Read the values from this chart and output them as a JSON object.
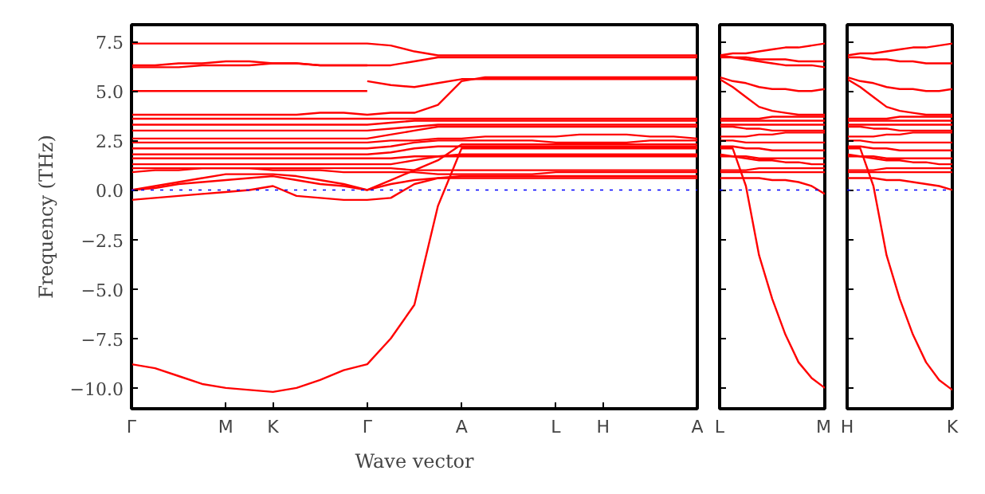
{
  "chart_data": [
    {
      "type": "line",
      "xlabel": "Wave vector",
      "ylabel": "Frequency (THz)",
      "ylim": [
        -11.05,
        8.35
      ],
      "categories": [
        "Γ",
        null,
        null,
        null,
        "M",
        null,
        "K",
        null,
        null,
        null,
        "Γ",
        null,
        null,
        null,
        "A",
        null,
        null,
        null,
        "L",
        null,
        "H",
        null,
        null,
        null,
        "A"
      ],
      "yticks": [
        {
          "value": -10,
          "label": "−10.0"
        },
        {
          "value": -7.5,
          "label": "−7.5"
        },
        {
          "value": -5,
          "label": "−5.0"
        },
        {
          "value": -2.5,
          "label": "−2.5"
        },
        {
          "value": 0,
          "label": "0.0"
        },
        {
          "value": 2.5,
          "label": "2.5"
        },
        {
          "value": 5,
          "label": "5.0"
        },
        {
          "value": 7.5,
          "label": "7.5"
        }
      ],
      "grid": false,
      "marker": "none",
      "line_style": "solid",
      "ref_lines": [
        {
          "axis": "y",
          "value": 0,
          "color": "#0000ff",
          "line_style": "dotted"
        }
      ],
      "series": [
        {
          "color": "#ff0000",
          "values": [
            7.4,
            7.4,
            7.4,
            7.4,
            7.4,
            7.4,
            7.4,
            7.4,
            7.4,
            7.4,
            7.4,
            7.3,
            7.0,
            6.8,
            6.8,
            6.8,
            6.8,
            6.8,
            6.8,
            6.8,
            6.8,
            6.8,
            6.8,
            6.8,
            6.8
          ]
        },
        {
          "color": "#ff0000",
          "values": [
            6.3,
            6.3,
            6.4,
            6.4,
            6.5,
            6.5,
            6.4,
            6.4,
            6.3,
            6.3,
            6.3,
            6.3,
            6.5,
            6.7,
            6.7,
            6.7,
            6.7,
            6.7,
            6.7,
            6.7,
            6.7,
            6.7,
            6.7,
            6.7,
            6.7
          ]
        },
        {
          "color": "#ff0000",
          "values": [
            6.2,
            6.2,
            6.2,
            6.3,
            6.3,
            6.3,
            6.4,
            6.4,
            6.3,
            6.3,
            6.3,
            null,
            null,
            null,
            null,
            null,
            null,
            null,
            null,
            null,
            null,
            null,
            null,
            null,
            null
          ]
        },
        {
          "color": "#ff0000",
          "values": [
            5.0,
            5.0,
            5.0,
            5.0,
            5.0,
            5.0,
            5.0,
            5.0,
            5.0,
            5.0,
            5.0,
            null,
            null,
            null,
            null,
            null,
            null,
            null,
            null,
            null,
            null,
            null,
            null,
            null,
            null
          ]
        },
        {
          "color": "#ff0000",
          "values": [
            null,
            null,
            null,
            null,
            null,
            null,
            null,
            null,
            null,
            null,
            5.5,
            5.3,
            5.2,
            5.4,
            5.6,
            5.6,
            5.6,
            5.6,
            5.6,
            5.6,
            5.6,
            5.6,
            5.6,
            5.6,
            5.6
          ]
        },
        {
          "color": "#ff0000",
          "values": [
            3.8,
            3.8,
            3.8,
            3.8,
            3.8,
            3.8,
            3.8,
            3.8,
            3.9,
            3.9,
            3.8,
            3.9,
            3.9,
            4.3,
            5.5,
            5.7,
            5.7,
            5.7,
            5.7,
            5.7,
            5.7,
            5.7,
            5.7,
            5.7,
            5.7
          ]
        },
        {
          "color": "#ff0000",
          "values": [
            3.6,
            3.6,
            3.6,
            3.6,
            3.6,
            3.6,
            3.6,
            3.6,
            3.6,
            3.6,
            3.6,
            3.6,
            3.6,
            3.6,
            3.6,
            3.6,
            3.6,
            3.6,
            3.6,
            3.6,
            3.6,
            3.6,
            3.6,
            3.6,
            3.6
          ]
        },
        {
          "color": "#ff0000",
          "values": [
            3.3,
            3.3,
            3.3,
            3.3,
            3.3,
            3.3,
            3.3,
            3.3,
            3.3,
            3.3,
            3.3,
            3.4,
            3.5,
            3.5,
            3.5,
            3.5,
            3.5,
            3.5,
            3.5,
            3.5,
            3.5,
            3.5,
            3.5,
            3.5,
            3.5
          ]
        },
        {
          "color": "#ff0000",
          "values": [
            3.0,
            3.0,
            3.0,
            3.0,
            3.0,
            3.0,
            3.0,
            3.0,
            3.0,
            3.0,
            3.0,
            3.1,
            3.2,
            3.3,
            3.3,
            3.3,
            3.3,
            3.3,
            3.3,
            3.3,
            3.3,
            3.3,
            3.3,
            3.3,
            3.3
          ]
        },
        {
          "color": "#ff0000",
          "values": [
            2.6,
            2.6,
            2.6,
            2.6,
            2.6,
            2.6,
            2.6,
            2.6,
            2.6,
            2.6,
            2.6,
            2.8,
            3.0,
            3.2,
            3.2,
            3.2,
            3.2,
            3.2,
            3.2,
            3.2,
            3.2,
            3.2,
            3.2,
            3.2,
            3.2
          ]
        },
        {
          "color": "#ff0000",
          "values": [
            2.4,
            2.4,
            2.4,
            2.4,
            2.4,
            2.4,
            2.4,
            2.4,
            2.4,
            2.4,
            2.4,
            2.5,
            2.5,
            2.6,
            2.6,
            2.7,
            2.7,
            2.7,
            2.7,
            2.8,
            2.8,
            2.8,
            2.7,
            2.7,
            2.6
          ]
        },
        {
          "color": "#ff0000",
          "values": [
            2.1,
            2.1,
            2.1,
            2.1,
            2.1,
            2.1,
            2.1,
            2.1,
            2.1,
            2.1,
            2.1,
            2.2,
            2.4,
            2.5,
            2.5,
            2.5,
            2.5,
            2.5,
            2.4,
            2.4,
            2.4,
            2.4,
            2.5,
            2.5,
            2.5
          ]
        },
        {
          "color": "#ff0000",
          "values": [
            1.8,
            1.8,
            1.8,
            1.8,
            1.8,
            1.8,
            1.8,
            1.8,
            1.8,
            1.8,
            1.8,
            1.9,
            2.1,
            2.2,
            2.2,
            2.2,
            2.2,
            2.2,
            2.2,
            2.2,
            2.2,
            2.2,
            2.2,
            2.2,
            2.2
          ]
        },
        {
          "color": "#ff0000",
          "values": [
            1.6,
            1.6,
            1.6,
            1.6,
            1.6,
            1.6,
            1.6,
            1.6,
            1.6,
            1.6,
            1.6,
            1.6,
            1.7,
            1.7,
            1.7,
            1.7,
            1.7,
            1.7,
            1.7,
            1.7,
            1.7,
            1.7,
            1.7,
            1.7,
            1.7
          ]
        },
        {
          "color": "#ff0000",
          "values": [
            1.3,
            1.3,
            1.3,
            1.3,
            1.3,
            1.3,
            1.3,
            1.3,
            1.3,
            1.3,
            1.3,
            1.3,
            1.5,
            1.7,
            1.8,
            1.8,
            1.8,
            1.8,
            1.8,
            1.8,
            1.8,
            1.8,
            1.8,
            1.8,
            1.8
          ]
        },
        {
          "color": "#ff0000",
          "values": [
            1.1,
            1.1,
            1.1,
            1.1,
            1.1,
            1.1,
            1.1,
            1.1,
            1.1,
            1.1,
            1.1,
            1.1,
            1.0,
            1.0,
            1.0,
            1.0,
            1.0,
            1.0,
            1.0,
            1.0,
            1.0,
            1.0,
            1.0,
            1.0,
            1.0
          ]
        },
        {
          "color": "#ff0000",
          "values": [
            0.9,
            1.0,
            1.0,
            1.1,
            1.1,
            1.1,
            1.0,
            1.0,
            1.0,
            0.9,
            0.9,
            0.9,
            0.9,
            0.8,
            0.8,
            0.8,
            0.8,
            0.8,
            0.9,
            0.9,
            0.9,
            0.9,
            0.9,
            0.9,
            0.9
          ]
        },
        {
          "color": "#ff0000",
          "values": [
            0,
            0.2,
            0.4,
            0.6,
            0.8,
            0.8,
            0.8,
            0.7,
            0.5,
            0.3,
            0,
            0.5,
            1.0,
            1.5,
            2.3,
            2.3,
            2.3,
            2.3,
            2.3,
            2.3,
            2.3,
            2.3,
            2.3,
            2.3,
            2.3
          ]
        },
        {
          "color": "#ff0000",
          "values": [
            0,
            0.1,
            0.3,
            0.4,
            0.5,
            0.6,
            0.7,
            0.5,
            0.3,
            0.2,
            0,
            0.3,
            0.5,
            0.6,
            0.7,
            0.7,
            0.7,
            0.7,
            0.7,
            0.7,
            0.7,
            0.7,
            0.7,
            0.7,
            0.7
          ]
        },
        {
          "color": "#ff0000",
          "values": [
            -0.5,
            -0.4,
            -0.3,
            -0.2,
            -0.1,
            0.0,
            0.2,
            -0.3,
            -0.4,
            -0.5,
            -0.5,
            -0.4,
            0.3,
            0.6,
            0.6,
            0.6,
            0.6,
            0.6,
            0.6,
            0.6,
            0.6,
            0.6,
            0.6,
            0.6,
            0.6
          ]
        },
        {
          "color": "#ff0000",
          "values": [
            -8.8,
            -9.0,
            -9.4,
            -9.8,
            -10.0,
            -10.1,
            -10.2,
            -10.0,
            -9.6,
            -9.1,
            -8.8,
            -7.5,
            -5.8,
            -0.8,
            2.1,
            2.1,
            2.1,
            2.1,
            2.1,
            2.1,
            2.1,
            2.1,
            2.1,
            2.1,
            2.1
          ]
        }
      ]
    },
    {
      "type": "line",
      "ylim": [
        -11.05,
        8.35
      ],
      "tick_labels": "x",
      "categories": [
        "L",
        null,
        null,
        null,
        null,
        null,
        null,
        null,
        "M"
      ],
      "yticks": [
        -10,
        -7.5,
        -5,
        -2.5,
        0,
        2.5,
        5,
        7.5
      ],
      "grid": false,
      "marker": "none",
      "line_style": "solid",
      "ref_lines": [
        {
          "axis": "y",
          "value": 0,
          "color": "#0000ff",
          "line_style": "dotted"
        }
      ],
      "series": [
        {
          "color": "#ff0000",
          "values": [
            6.8,
            6.9,
            6.9,
            7.0,
            7.1,
            7.2,
            7.2,
            7.3,
            7.4
          ]
        },
        {
          "color": "#ff0000",
          "values": [
            6.7,
            6.7,
            6.7,
            6.6,
            6.6,
            6.6,
            6.5,
            6.5,
            6.5
          ]
        },
        {
          "color": "#ff0000",
          "values": [
            6.8,
            6.7,
            6.6,
            6.5,
            6.4,
            6.3,
            6.3,
            6.3,
            6.2
          ]
        },
        {
          "color": "#ff0000",
          "values": [
            5.7,
            5.5,
            5.4,
            5.2,
            5.1,
            5.1,
            5.0,
            5.0,
            5.1
          ]
        },
        {
          "color": "#ff0000",
          "values": [
            5.6,
            5.2,
            4.7,
            4.2,
            4.0,
            3.9,
            3.8,
            3.8,
            3.8
          ]
        },
        {
          "color": "#ff0000",
          "values": [
            3.6,
            3.6,
            3.6,
            3.6,
            3.7,
            3.7,
            3.7,
            3.7,
            3.7
          ]
        },
        {
          "color": "#ff0000",
          "values": [
            3.5,
            3.5,
            3.5,
            3.5,
            3.5,
            3.5,
            3.5,
            3.5,
            3.5
          ]
        },
        {
          "color": "#ff0000",
          "values": [
            3.3,
            3.3,
            3.3,
            3.3,
            3.3,
            3.3,
            3.3,
            3.3,
            3.3
          ]
        },
        {
          "color": "#ff0000",
          "values": [
            3.2,
            3.2,
            3.1,
            3.1,
            3.0,
            3.0,
            3.0,
            3.0,
            3.0
          ]
        },
        {
          "color": "#ff0000",
          "values": [
            2.7,
            2.7,
            2.7,
            2.8,
            2.8,
            2.9,
            2.9,
            2.9,
            2.9
          ]
        },
        {
          "color": "#ff0000",
          "values": [
            2.5,
            2.5,
            2.4,
            2.4,
            2.4,
            2.4,
            2.4,
            2.4,
            2.4
          ]
        },
        {
          "color": "#ff0000",
          "values": [
            2.2,
            2.2,
            2.1,
            2.1,
            2.0,
            2.0,
            2.0,
            2.0,
            2.0
          ]
        },
        {
          "color": "#ff0000",
          "values": [
            1.7,
            1.7,
            1.7,
            1.6,
            1.6,
            1.6,
            1.6,
            1.6,
            1.6
          ]
        },
        {
          "color": "#ff0000",
          "values": [
            1.8,
            1.7,
            1.6,
            1.5,
            1.5,
            1.4,
            1.4,
            1.3,
            1.3
          ]
        },
        {
          "color": "#ff0000",
          "values": [
            1.0,
            1.0,
            1.0,
            1.1,
            1.1,
            1.1,
            1.1,
            1.1,
            1.1
          ]
        },
        {
          "color": "#ff0000",
          "values": [
            0.9,
            0.9,
            0.9,
            0.9,
            0.9,
            0.9,
            0.9,
            0.9,
            0.9
          ]
        },
        {
          "color": "#ff0000",
          "values": [
            0.6,
            0.6,
            0.6,
            0.6,
            0.5,
            0.5,
            0.4,
            0.2,
            -0.2
          ]
        },
        {
          "color": "#ff0000",
          "values": [
            2.1,
            2.1,
            0.2,
            -3.3,
            -5.5,
            -7.3,
            -8.7,
            -9.5,
            -10.0
          ]
        }
      ]
    },
    {
      "type": "line",
      "ylim": [
        -11.05,
        8.35
      ],
      "tick_labels": "x",
      "categories": [
        "H",
        null,
        null,
        null,
        null,
        null,
        null,
        null,
        "K"
      ],
      "yticks": [
        -10,
        -7.5,
        -5,
        -2.5,
        0,
        2.5,
        5,
        7.5
      ],
      "grid": false,
      "marker": "none",
      "line_style": "solid",
      "ref_lines": [
        {
          "axis": "y",
          "value": 0,
          "color": "#0000ff",
          "line_style": "dotted"
        }
      ],
      "series": [
        {
          "color": "#ff0000",
          "values": [
            6.8,
            6.9,
            6.9,
            7.0,
            7.1,
            7.2,
            7.2,
            7.3,
            7.4
          ]
        },
        {
          "color": "#ff0000",
          "values": [
            6.7,
            6.7,
            6.6,
            6.6,
            6.5,
            6.5,
            6.4,
            6.4,
            6.4
          ]
        },
        {
          "color": "#ff0000",
          "values": [
            5.7,
            5.5,
            5.4,
            5.2,
            5.1,
            5.1,
            5.0,
            5.0,
            5.1
          ]
        },
        {
          "color": "#ff0000",
          "values": [
            5.6,
            5.2,
            4.7,
            4.2,
            4.0,
            3.9,
            3.8,
            3.8,
            3.8
          ]
        },
        {
          "color": "#ff0000",
          "values": [
            3.6,
            3.6,
            3.6,
            3.6,
            3.7,
            3.7,
            3.7,
            3.7,
            3.7
          ]
        },
        {
          "color": "#ff0000",
          "values": [
            3.5,
            3.5,
            3.5,
            3.5,
            3.5,
            3.5,
            3.5,
            3.5,
            3.5
          ]
        },
        {
          "color": "#ff0000",
          "values": [
            3.3,
            3.3,
            3.3,
            3.3,
            3.3,
            3.3,
            3.3,
            3.3,
            3.3
          ]
        },
        {
          "color": "#ff0000",
          "values": [
            3.2,
            3.2,
            3.1,
            3.1,
            3.0,
            3.0,
            3.0,
            3.0,
            3.0
          ]
        },
        {
          "color": "#ff0000",
          "values": [
            2.7,
            2.7,
            2.7,
            2.8,
            2.8,
            2.9,
            2.9,
            2.9,
            2.9
          ]
        },
        {
          "color": "#ff0000",
          "values": [
            2.5,
            2.5,
            2.4,
            2.4,
            2.4,
            2.4,
            2.4,
            2.4,
            2.4
          ]
        },
        {
          "color": "#ff0000",
          "values": [
            2.2,
            2.2,
            2.1,
            2.1,
            2.0,
            2.0,
            2.0,
            2.0,
            2.0
          ]
        },
        {
          "color": "#ff0000",
          "values": [
            1.7,
            1.7,
            1.7,
            1.6,
            1.6,
            1.6,
            1.6,
            1.6,
            1.6
          ]
        },
        {
          "color": "#ff0000",
          "values": [
            1.8,
            1.7,
            1.6,
            1.5,
            1.5,
            1.4,
            1.4,
            1.3,
            1.3
          ]
        },
        {
          "color": "#ff0000",
          "values": [
            1.0,
            1.0,
            1.0,
            1.1,
            1.1,
            1.1,
            1.1,
            1.1,
            1.1
          ]
        },
        {
          "color": "#ff0000",
          "values": [
            0.9,
            0.9,
            0.9,
            0.9,
            0.9,
            0.9,
            0.9,
            0.9,
            0.9
          ]
        },
        {
          "color": "#ff0000",
          "values": [
            0.6,
            0.6,
            0.6,
            0.5,
            0.5,
            0.4,
            0.3,
            0.2,
            0.0
          ]
        },
        {
          "color": "#ff0000",
          "values": [
            2.1,
            2.1,
            0.2,
            -3.3,
            -5.5,
            -7.3,
            -8.7,
            -9.6,
            -10.1
          ]
        }
      ]
    }
  ]
}
